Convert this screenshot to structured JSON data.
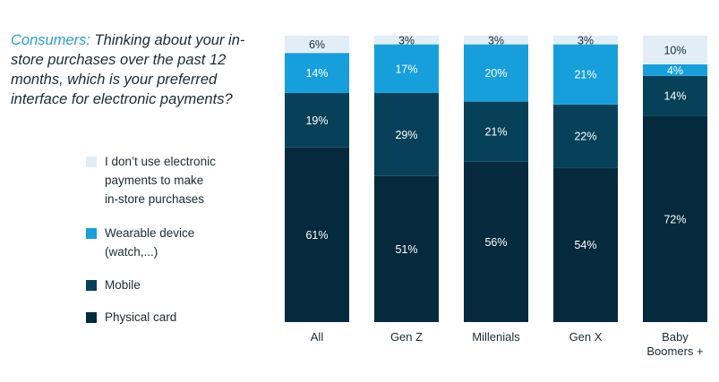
{
  "question": {
    "lead": "Consumers:",
    "text": " Thinking about your in-store purchases over the past 12 months, which is your preferred interface for electronic payments?"
  },
  "chart_data": {
    "type": "bar",
    "stacked": true,
    "normalized": true,
    "categories": [
      "All",
      "Gen Z",
      "Millenials",
      "Gen X",
      "Baby\nBoomers +"
    ],
    "series": [
      {
        "name": "Physical card",
        "values": [
          61,
          51,
          56,
          54,
          72
        ],
        "color": "#062a3d",
        "label_color": "#ffffff"
      },
      {
        "name": "Mobile",
        "values": [
          19,
          29,
          21,
          22,
          14
        ],
        "color": "#064159",
        "label_color": "#ffffff"
      },
      {
        "name": "Wearable device\n(watch,...)",
        "values": [
          14,
          17,
          20,
          21,
          4
        ],
        "color": "#169fdb",
        "label_color": "#ffffff"
      },
      {
        "name": "I don’t use electronic\npayments to make\nin-store purchases",
        "values": [
          6,
          3,
          3,
          3,
          10
        ],
        "color": "#e1eef8",
        "label_color": "#1b2b36"
      }
    ],
    "legend_order": [
      3,
      2,
      1,
      0
    ],
    "legend_position": "left",
    "value_suffix": "%",
    "ylim": [
      0,
      100
    ],
    "grid": false
  }
}
